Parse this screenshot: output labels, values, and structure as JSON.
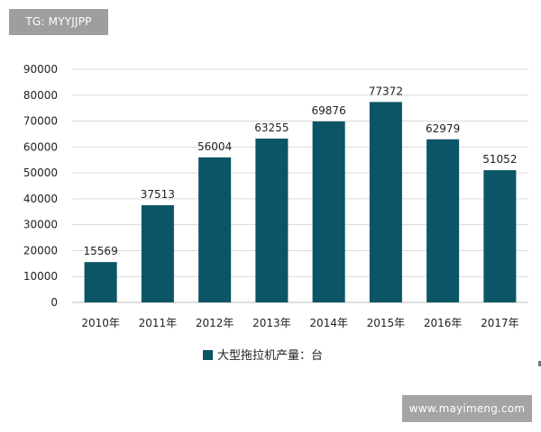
{
  "watermark_top": "TG: MYYJJPP",
  "watermark_bottom": "www.mayimeng.com",
  "chart_data": {
    "type": "bar",
    "categories": [
      "2010年",
      "2011年",
      "2012年",
      "2013年",
      "2014年",
      "2015年",
      "2016年",
      "2017年"
    ],
    "series": [
      {
        "name": "大型拖拉机产量：台",
        "values": [
          15569,
          37513,
          56004,
          63255,
          69876,
          77372,
          62979,
          51052
        ]
      }
    ],
    "y_ticks": [
      "0",
      "10000",
      "20000",
      "30000",
      "40000",
      "50000",
      "60000",
      "70000",
      "80000",
      "90000"
    ],
    "ylim": [
      0,
      90000
    ],
    "grid": true,
    "legend": "bottom-center",
    "bar_color": "#0b5566",
    "title": "",
    "xlabel": "",
    "ylabel": ""
  }
}
